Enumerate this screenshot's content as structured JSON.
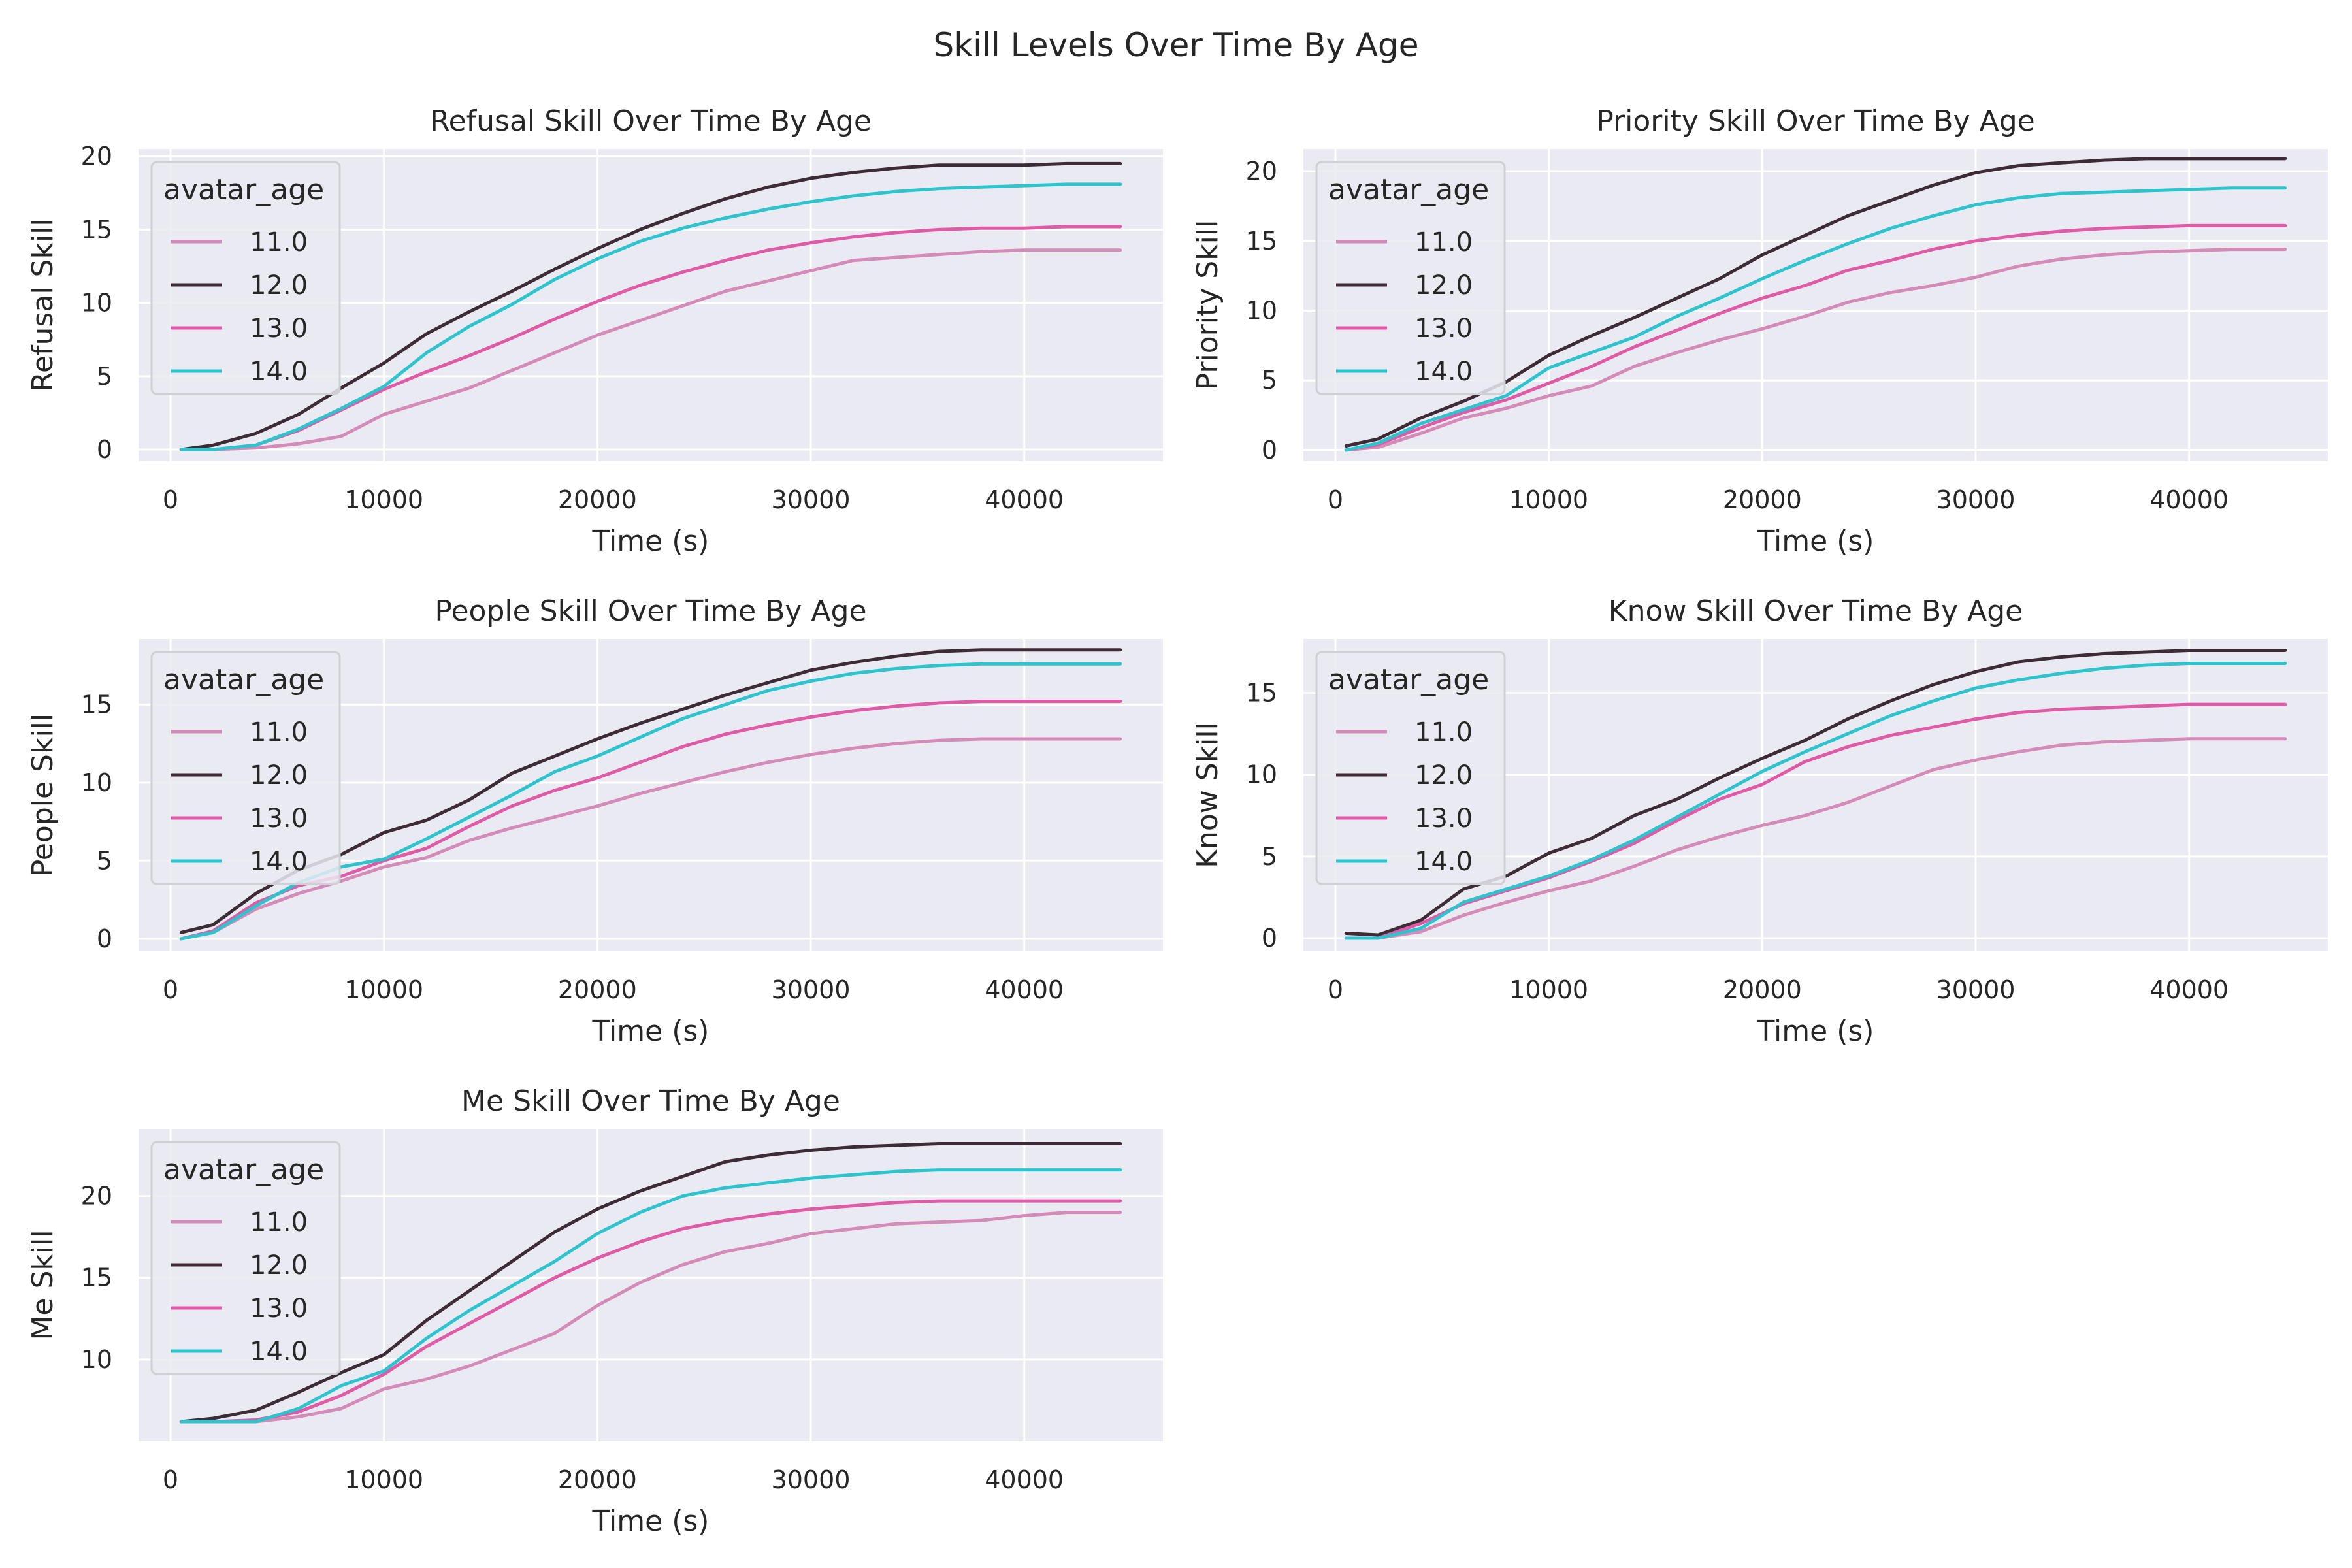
{
  "figure_title": "Skill Levels Over Time By Age",
  "colors": {
    "11.0": "#d48bb7",
    "12.0": "#3d2c37",
    "13.0": "#e05ba6",
    "14.0": "#2ec4cd",
    "background": "#eaeaf2",
    "grid": "#ffffff"
  },
  "chart_data": [
    {
      "type": "line",
      "title": "Refusal Skill Over Time By Age",
      "xlabel": "Time (s)",
      "ylabel": "Refusal Skill",
      "xlim": [
        -1500,
        46500
      ],
      "ylim": [
        -0.8,
        20.5
      ],
      "xticks": [
        0,
        10000,
        20000,
        30000,
        40000
      ],
      "yticks": [
        0,
        5,
        10,
        15,
        20
      ],
      "grid": true,
      "legend": {
        "title": "avatar_age",
        "position": "upper-left",
        "labels": [
          "11.0",
          "12.0",
          "13.0",
          "14.0"
        ]
      },
      "x": [
        500,
        2000,
        4000,
        6000,
        8000,
        10000,
        12000,
        14000,
        16000,
        18000,
        20000,
        22000,
        24000,
        26000,
        28000,
        30000,
        32000,
        34000,
        36000,
        38000,
        40000,
        42000,
        44500
      ],
      "series": [
        {
          "name": "11.0",
          "values": [
            0,
            0,
            0.1,
            0.4,
            0.9,
            2.4,
            3.3,
            4.2,
            5.4,
            6.6,
            7.8,
            8.8,
            9.8,
            10.8,
            11.5,
            12.2,
            12.9,
            13.1,
            13.3,
            13.5,
            13.6,
            13.6,
            13.6
          ]
        },
        {
          "name": "12.0",
          "values": [
            0,
            0.3,
            1.1,
            2.4,
            4.2,
            5.9,
            7.9,
            9.4,
            10.8,
            12.3,
            13.7,
            15.0,
            16.1,
            17.1,
            17.9,
            18.5,
            18.9,
            19.2,
            19.4,
            19.4,
            19.4,
            19.5,
            19.5
          ]
        },
        {
          "name": "13.0",
          "values": [
            0,
            0,
            0.3,
            1.3,
            2.7,
            4.1,
            5.3,
            6.4,
            7.6,
            8.9,
            10.1,
            11.2,
            12.1,
            12.9,
            13.6,
            14.1,
            14.5,
            14.8,
            15.0,
            15.1,
            15.1,
            15.2,
            15.2
          ]
        },
        {
          "name": "14.0",
          "values": [
            0,
            0,
            0.3,
            1.4,
            2.8,
            4.3,
            6.6,
            8.4,
            9.9,
            11.6,
            13.0,
            14.2,
            15.1,
            15.8,
            16.4,
            16.9,
            17.3,
            17.6,
            17.8,
            17.9,
            18.0,
            18.1,
            18.1
          ]
        }
      ]
    },
    {
      "type": "line",
      "title": "Priority Skill Over Time By Age",
      "xlabel": "Time (s)",
      "ylabel": "Priority Skill",
      "xlim": [
        -1500,
        46500
      ],
      "ylim": [
        -0.8,
        21.6
      ],
      "xticks": [
        0,
        10000,
        20000,
        30000,
        40000
      ],
      "yticks": [
        0,
        5,
        10,
        15,
        20
      ],
      "grid": true,
      "legend": {
        "title": "avatar_age",
        "position": "upper-left",
        "labels": [
          "11.0",
          "12.0",
          "13.0",
          "14.0"
        ]
      },
      "x": [
        500,
        2000,
        4000,
        6000,
        8000,
        10000,
        12000,
        14000,
        16000,
        18000,
        20000,
        22000,
        24000,
        26000,
        28000,
        30000,
        32000,
        34000,
        36000,
        38000,
        40000,
        42000,
        44500
      ],
      "series": [
        {
          "name": "11.0",
          "values": [
            0,
            0.2,
            1.2,
            2.3,
            3.0,
            3.9,
            4.6,
            6.0,
            7.0,
            7.9,
            8.7,
            9.6,
            10.6,
            11.3,
            11.8,
            12.4,
            13.2,
            13.7,
            14.0,
            14.2,
            14.3,
            14.4,
            14.4
          ]
        },
        {
          "name": "12.0",
          "values": [
            0.3,
            0.8,
            2.3,
            3.5,
            4.9,
            6.8,
            8.2,
            9.5,
            10.9,
            12.3,
            14.0,
            15.4,
            16.8,
            17.9,
            19.0,
            19.9,
            20.4,
            20.6,
            20.8,
            20.9,
            20.9,
            20.9,
            20.9
          ]
        },
        {
          "name": "13.0",
          "values": [
            0,
            0.4,
            1.6,
            2.7,
            3.6,
            4.8,
            6.0,
            7.4,
            8.6,
            9.8,
            10.9,
            11.8,
            12.9,
            13.6,
            14.4,
            15.0,
            15.4,
            15.7,
            15.9,
            16.0,
            16.1,
            16.1,
            16.1
          ]
        },
        {
          "name": "14.0",
          "values": [
            0,
            0.5,
            1.9,
            2.9,
            3.9,
            5.9,
            7.0,
            8.1,
            9.6,
            10.9,
            12.3,
            13.6,
            14.8,
            15.9,
            16.8,
            17.6,
            18.1,
            18.4,
            18.5,
            18.6,
            18.7,
            18.8,
            18.8
          ]
        }
      ]
    },
    {
      "type": "line",
      "title": "People Skill Over Time By Age",
      "xlabel": "Time (s)",
      "ylabel": "People Skill",
      "xlim": [
        -1500,
        46500
      ],
      "ylim": [
        -0.8,
        19.2
      ],
      "xticks": [
        0,
        10000,
        20000,
        30000,
        40000
      ],
      "yticks": [
        0,
        5,
        10,
        15
      ],
      "grid": true,
      "legend": {
        "title": "avatar_age",
        "position": "upper-left",
        "labels": [
          "11.0",
          "12.0",
          "13.0",
          "14.0"
        ]
      },
      "x": [
        500,
        2000,
        4000,
        6000,
        8000,
        10000,
        12000,
        14000,
        16000,
        18000,
        20000,
        22000,
        24000,
        26000,
        28000,
        30000,
        32000,
        34000,
        36000,
        38000,
        40000,
        42000,
        44500
      ],
      "series": [
        {
          "name": "11.0",
          "values": [
            0,
            0.4,
            1.9,
            2.9,
            3.7,
            4.6,
            5.2,
            6.3,
            7.1,
            7.8,
            8.5,
            9.3,
            10.0,
            10.7,
            11.3,
            11.8,
            12.2,
            12.5,
            12.7,
            12.8,
            12.8,
            12.8,
            12.8
          ]
        },
        {
          "name": "12.0",
          "values": [
            0.4,
            0.9,
            2.9,
            4.4,
            5.4,
            6.8,
            7.6,
            8.9,
            10.6,
            11.7,
            12.8,
            13.8,
            14.7,
            15.6,
            16.4,
            17.2,
            17.7,
            18.1,
            18.4,
            18.5,
            18.5,
            18.5,
            18.5
          ]
        },
        {
          "name": "13.0",
          "values": [
            0,
            0.5,
            2.3,
            3.4,
            4.0,
            5.0,
            5.8,
            7.2,
            8.5,
            9.5,
            10.3,
            11.3,
            12.3,
            13.1,
            13.7,
            14.2,
            14.6,
            14.9,
            15.1,
            15.2,
            15.2,
            15.2,
            15.2
          ]
        },
        {
          "name": "14.0",
          "values": [
            0,
            0.4,
            2.1,
            3.6,
            4.6,
            5.1,
            6.4,
            7.8,
            9.2,
            10.7,
            11.7,
            12.9,
            14.1,
            15.0,
            15.9,
            16.5,
            17.0,
            17.3,
            17.5,
            17.6,
            17.6,
            17.6,
            17.6
          ]
        }
      ]
    },
    {
      "type": "line",
      "title": "Know Skill Over Time By Age",
      "xlabel": "Time (s)",
      "ylabel": "Know Skill",
      "xlim": [
        -1500,
        46500
      ],
      "ylim": [
        -0.8,
        18.3
      ],
      "xticks": [
        0,
        10000,
        20000,
        30000,
        40000
      ],
      "yticks": [
        0,
        5,
        10,
        15
      ],
      "grid": true,
      "legend": {
        "title": "avatar_age",
        "position": "upper-left",
        "labels": [
          "11.0",
          "12.0",
          "13.0",
          "14.0"
        ]
      },
      "x": [
        500,
        2000,
        4000,
        6000,
        8000,
        10000,
        12000,
        14000,
        16000,
        18000,
        20000,
        22000,
        24000,
        26000,
        28000,
        30000,
        32000,
        34000,
        36000,
        38000,
        40000,
        42000,
        44500
      ],
      "series": [
        {
          "name": "11.0",
          "values": [
            0,
            0,
            0.4,
            1.4,
            2.2,
            2.9,
            3.5,
            4.4,
            5.4,
            6.2,
            6.9,
            7.5,
            8.3,
            9.3,
            10.3,
            10.9,
            11.4,
            11.8,
            12.0,
            12.1,
            12.2,
            12.2,
            12.2
          ]
        },
        {
          "name": "12.0",
          "values": [
            0.3,
            0.2,
            1.1,
            3.0,
            3.8,
            5.2,
            6.1,
            7.5,
            8.5,
            9.8,
            11.0,
            12.1,
            13.4,
            14.5,
            15.5,
            16.3,
            16.9,
            17.2,
            17.4,
            17.5,
            17.6,
            17.6,
            17.6
          ]
        },
        {
          "name": "13.0",
          "values": [
            0,
            0,
            0.9,
            2.1,
            2.9,
            3.7,
            4.7,
            5.8,
            7.2,
            8.5,
            9.4,
            10.8,
            11.7,
            12.4,
            12.9,
            13.4,
            13.8,
            14.0,
            14.1,
            14.2,
            14.3,
            14.3,
            14.3
          ]
        },
        {
          "name": "14.0",
          "values": [
            0,
            0,
            0.6,
            2.2,
            3.0,
            3.8,
            4.8,
            6.0,
            7.4,
            8.8,
            10.2,
            11.4,
            12.5,
            13.6,
            14.5,
            15.3,
            15.8,
            16.2,
            16.5,
            16.7,
            16.8,
            16.8,
            16.8
          ]
        }
      ]
    },
    {
      "type": "line",
      "title": "Me Skill Over Time By Age",
      "xlabel": "Time (s)",
      "ylabel": "Me Skill",
      "xlim": [
        -1500,
        46500
      ],
      "ylim": [
        5.0,
        24.1
      ],
      "xticks": [
        0,
        10000,
        20000,
        30000,
        40000
      ],
      "yticks": [
        10,
        15,
        20
      ],
      "grid": true,
      "legend": {
        "title": "avatar_age",
        "position": "upper-left",
        "labels": [
          "11.0",
          "12.0",
          "13.0",
          "14.0"
        ]
      },
      "x": [
        500,
        2000,
        4000,
        6000,
        8000,
        10000,
        12000,
        14000,
        16000,
        18000,
        20000,
        22000,
        24000,
        26000,
        28000,
        30000,
        32000,
        34000,
        36000,
        38000,
        40000,
        42000,
        44500
      ],
      "series": [
        {
          "name": "11.0",
          "values": [
            6.2,
            6.2,
            6.2,
            6.5,
            7.0,
            8.2,
            8.8,
            9.6,
            10.6,
            11.6,
            13.3,
            14.7,
            15.8,
            16.6,
            17.1,
            17.7,
            18.0,
            18.3,
            18.4,
            18.5,
            18.8,
            19.0,
            19.0
          ]
        },
        {
          "name": "12.0",
          "values": [
            6.2,
            6.4,
            6.9,
            8.0,
            9.2,
            10.3,
            12.4,
            14.2,
            16.0,
            17.8,
            19.2,
            20.3,
            21.2,
            22.1,
            22.5,
            22.8,
            23.0,
            23.1,
            23.2,
            23.2,
            23.2,
            23.2,
            23.2
          ]
        },
        {
          "name": "13.0",
          "values": [
            6.2,
            6.2,
            6.3,
            6.8,
            7.8,
            9.1,
            10.8,
            12.2,
            13.6,
            15.0,
            16.2,
            17.2,
            18.0,
            18.5,
            18.9,
            19.2,
            19.4,
            19.6,
            19.7,
            19.7,
            19.7,
            19.7,
            19.7
          ]
        },
        {
          "name": "14.0",
          "values": [
            6.2,
            6.2,
            6.2,
            7.0,
            8.4,
            9.3,
            11.3,
            13.0,
            14.5,
            16.0,
            17.7,
            19.0,
            20.0,
            20.5,
            20.8,
            21.1,
            21.3,
            21.5,
            21.6,
            21.6,
            21.6,
            21.6,
            21.6
          ]
        }
      ]
    }
  ]
}
